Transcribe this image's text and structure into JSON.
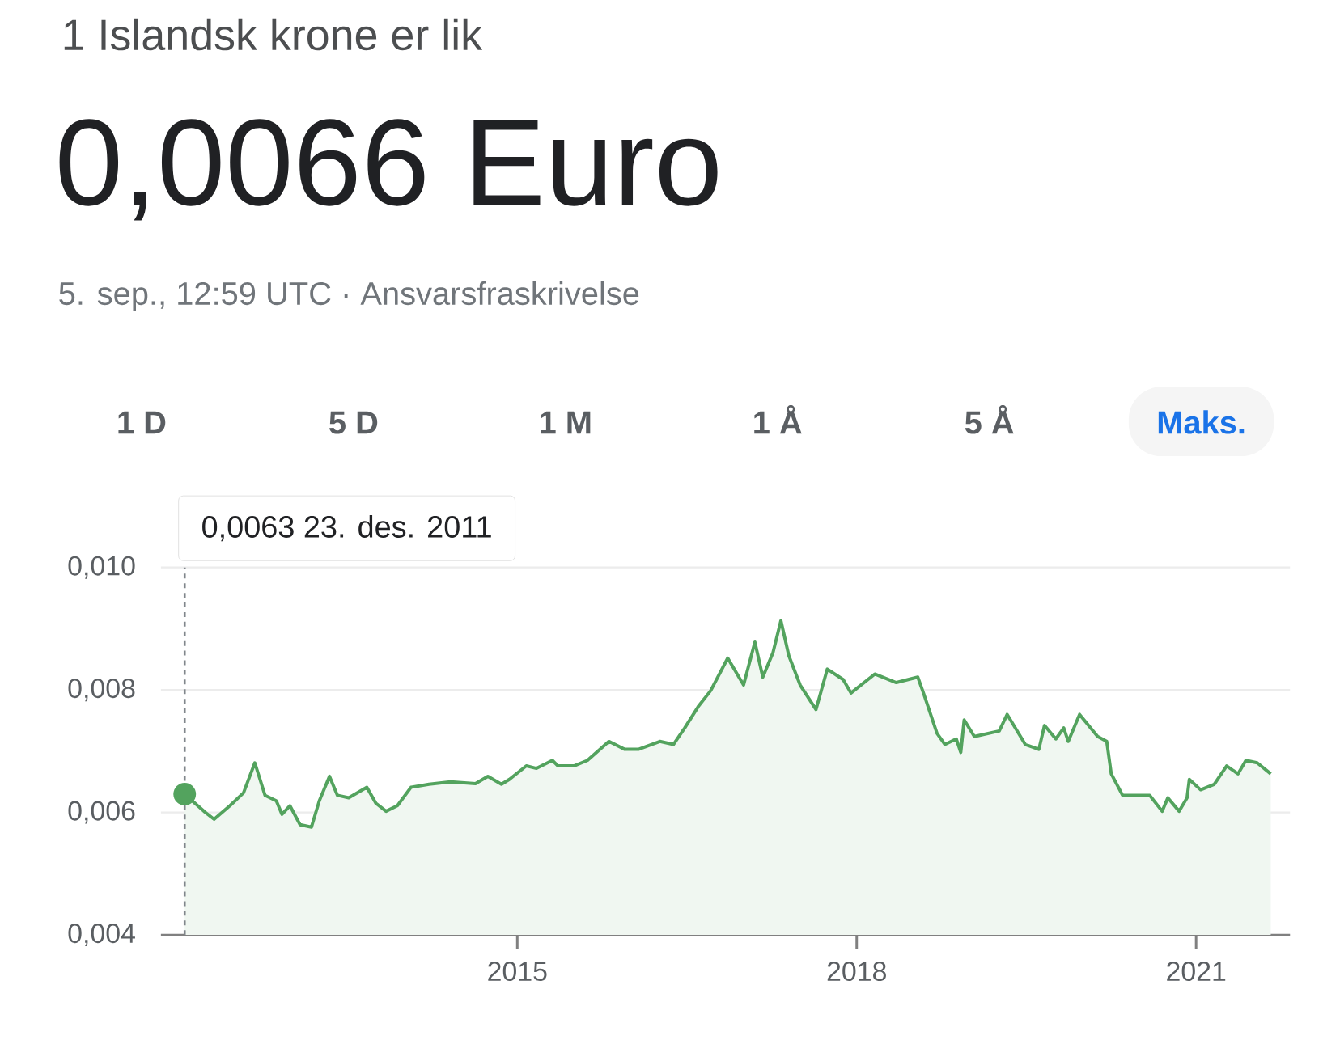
{
  "chart_data": {
    "type": "area",
    "title": "1 Islandsk krone er lik",
    "subtitle": "0,0066 Euro",
    "annotations": [
      "5. sep., 12:59 UTC · Ansvarsfraskrivelse",
      "1 D",
      "5 D",
      "1 M",
      "1 Å",
      "5 Å",
      "Maks.",
      "0,0063 23. des. 2011"
    ],
    "x": [
      2012.06,
      2012.23,
      2012.32,
      2012.46,
      2012.58,
      2012.68,
      2012.77,
      2012.87,
      2012.92,
      2012.99,
      2013.08,
      2013.18,
      2013.25,
      2013.34,
      2013.41,
      2013.51,
      2013.67,
      2013.75,
      2013.84,
      2013.94,
      2014.06,
      2014.22,
      2014.41,
      2014.63,
      2014.74,
      2014.86,
      2014.93,
      2015.08,
      2015.17,
      2015.31,
      2015.36,
      2015.5,
      2015.62,
      2015.81,
      2015.95,
      2016.07,
      2016.26,
      2016.38,
      2016.48,
      2016.6,
      2016.71,
      2016.86,
      2017.0,
      2017.1,
      2017.17,
      2017.26,
      2017.33,
      2017.4,
      2017.5,
      2017.64,
      2017.74,
      2017.88,
      2017.95,
      2018.16,
      2018.35,
      2018.54,
      2018.59,
      2018.71,
      2018.78,
      2018.88,
      2018.92,
      2018.95,
      2019.04,
      2019.26,
      2019.33,
      2019.49,
      2019.61,
      2019.66,
      2019.76,
      2019.83,
      2019.87,
      2019.97,
      2020.13,
      2020.21,
      2020.25,
      2020.35,
      2020.59,
      2020.7,
      2020.75,
      2020.85,
      2020.92,
      2020.94,
      2021.04,
      2021.16,
      2021.27,
      2021.37,
      2021.44,
      2021.54,
      2021.66
    ],
    "values": [
      0.0063,
      0.00602,
      0.00589,
      0.00611,
      0.00632,
      0.00681,
      0.00628,
      0.00619,
      0.00597,
      0.00611,
      0.0058,
      0.00576,
      0.00619,
      0.00659,
      0.00628,
      0.00624,
      0.00641,
      0.00615,
      0.00602,
      0.00611,
      0.00641,
      0.00646,
      0.0065,
      0.00647,
      0.00659,
      0.00646,
      0.00654,
      0.00676,
      0.00672,
      0.00685,
      0.00676,
      0.00676,
      0.00685,
      0.00716,
      0.00703,
      0.00703,
      0.00716,
      0.00711,
      0.00738,
      0.00773,
      0.00799,
      0.00852,
      0.00808,
      0.00878,
      0.00821,
      0.00861,
      0.00913,
      0.00856,
      0.00808,
      0.00768,
      0.00834,
      0.00817,
      0.00795,
      0.00826,
      0.00812,
      0.00821,
      0.00795,
      0.00729,
      0.00711,
      0.0072,
      0.00698,
      0.00751,
      0.00724,
      0.00733,
      0.0076,
      0.00711,
      0.00703,
      0.00742,
      0.0072,
      0.00738,
      0.00716,
      0.0076,
      0.00724,
      0.00716,
      0.00663,
      0.00628,
      0.00628,
      0.00602,
      0.00624,
      0.00602,
      0.00624,
      0.00654,
      0.00637,
      0.00646,
      0.00676,
      0.00663,
      0.00685,
      0.00681,
      0.00663
    ],
    "color": "#53a35e",
    "xlim": [
      2011.85,
      2021.83
    ],
    "ylim": [
      0.004,
      0.01
    ],
    "xticks": [
      {
        "value": 2015,
        "label": "2015"
      },
      {
        "value": 2018,
        "label": "2018"
      },
      {
        "value": 2021,
        "label": "2021"
      }
    ],
    "yticks": [
      {
        "value": 0.004,
        "label": "0,004"
      },
      {
        "value": 0.006,
        "label": "0,006"
      },
      {
        "value": 0.008,
        "label": "0,008"
      },
      {
        "value": 0.01,
        "label": "0,010"
      }
    ],
    "grid": "y",
    "ref_lines": [
      {
        "axis": "x",
        "value": 2012.06,
        "line_style": "dashed",
        "color": "#80868b"
      }
    ]
  }
}
